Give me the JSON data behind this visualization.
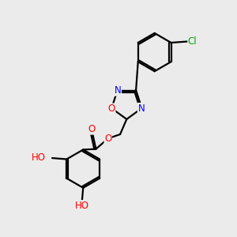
{
  "background_color": "#ebebeb",
  "bond_color": "#000000",
  "bond_width": 1.6,
  "atom_colors": {
    "O": "#ff0000",
    "N": "#0000ff",
    "Cl": "#00aa00",
    "C": "#000000",
    "H": "#808080"
  },
  "font_size": 8.5
}
